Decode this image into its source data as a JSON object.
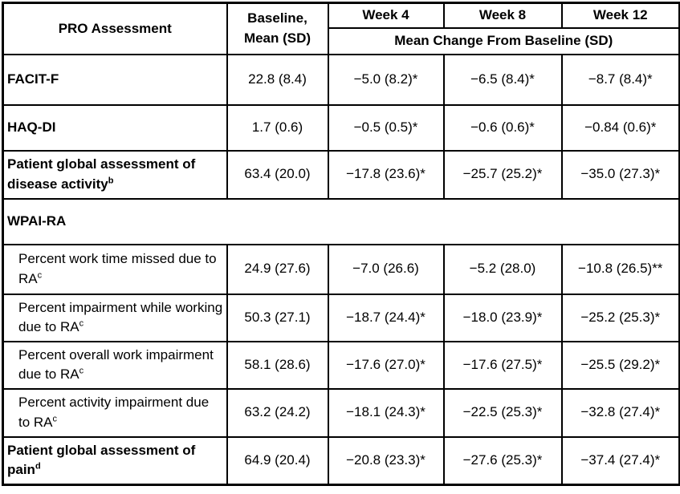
{
  "table": {
    "header": {
      "pro_assessment": "PRO Assessment",
      "baseline_line1": "Baseline,",
      "baseline_line2": "Mean (SD)",
      "week4": "Week 4",
      "week8": "Week 8",
      "week12": "Week 12",
      "mean_change": "Mean Change From Baseline (SD)"
    },
    "section_label": "WPAI-RA",
    "rows": [
      {
        "label": "FACIT-F",
        "sup": "",
        "baseline": "22.8 (8.4)",
        "week4": "−5.0 (8.2)*",
        "week8": "−6.5 (8.4)*",
        "week12": "−8.7 (8.4)*"
      },
      {
        "label": "HAQ-DI",
        "sup": "",
        "baseline": "1.7 (0.6)",
        "week4": "−0.5 (0.5)*",
        "week8": "−0.6 (0.6)*",
        "week12": "−0.84 (0.6)*"
      },
      {
        "label": "Patient global assessment of disease activity",
        "sup": "b",
        "baseline": "63.4 (20.0)",
        "week4": "−17.8 (23.6)*",
        "week8": "−25.7 (25.2)*",
        "week12": "−35.0 (27.3)*"
      },
      {
        "label": "Percent work time missed due to RA",
        "sup": "c",
        "baseline": "24.9 (27.6)",
        "week4": "−7.0 (26.6)",
        "week8": "−5.2 (28.0)",
        "week12": "−10.8 (26.5)**"
      },
      {
        "label": "Percent impairment while working due to RA",
        "sup": "c",
        "baseline": "50.3 (27.1)",
        "week4": "−18.7 (24.4)*",
        "week8": "−18.0 (23.9)*",
        "week12": "−25.2 (25.3)*"
      },
      {
        "label": "Percent overall work impairment due to RA",
        "sup": "c",
        "baseline": "58.1 (28.6)",
        "week4": "−17.6 (27.0)*",
        "week8": "−17.6 (27.5)*",
        "week12": "−25.5 (29.2)*"
      },
      {
        "label": "Percent activity impairment due to RA",
        "sup": "c",
        "baseline": "63.2 (24.2)",
        "week4": "−18.1 (24.3)*",
        "week8": "−22.5 (25.3)*",
        "week12": "−32.8 (27.4)*"
      },
      {
        "label": "Patient global assessment of pain",
        "sup": "d",
        "baseline": "64.9 (20.4)",
        "week4": "−20.8 (23.3)*",
        "week8": "−27.6 (25.3)*",
        "week12": "−37.4 (27.4)*"
      }
    ]
  }
}
